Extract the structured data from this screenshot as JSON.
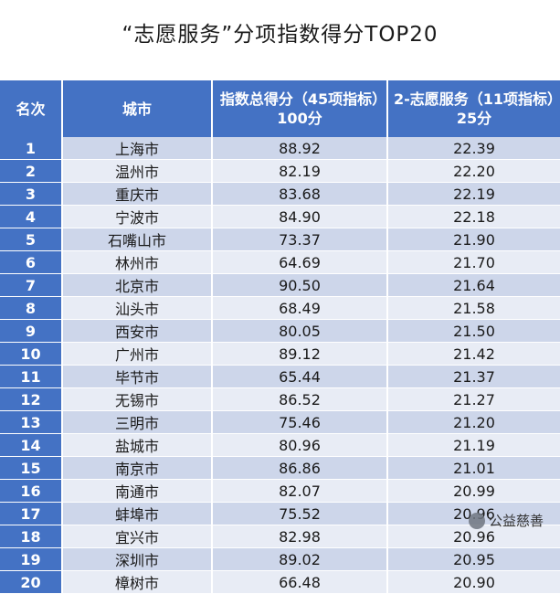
{
  "title": "“志愿服务”分项指数得分TOP20",
  "table": {
    "headers": [
      "名次",
      "城市",
      "指数总得分（45项指标）100分",
      "2-志愿服务（11项指标）25分"
    ],
    "rows": [
      [
        "1",
        "上海市",
        "88.92",
        "22.39"
      ],
      [
        "2",
        "温州市",
        "82.19",
        "22.20"
      ],
      [
        "3",
        "重庆市",
        "83.68",
        "22.19"
      ],
      [
        "4",
        "宁波市",
        "84.90",
        "22.18"
      ],
      [
        "5",
        "石嘴山市",
        "73.37",
        "21.90"
      ],
      [
        "6",
        "林州市",
        "64.69",
        "21.70"
      ],
      [
        "7",
        "北京市",
        "90.50",
        "21.64"
      ],
      [
        "8",
        "汕头市",
        "68.49",
        "21.58"
      ],
      [
        "9",
        "西安市",
        "80.05",
        "21.50"
      ],
      [
        "10",
        "广州市",
        "89.12",
        "21.42"
      ],
      [
        "11",
        "毕节市",
        "65.44",
        "21.37"
      ],
      [
        "12",
        "无锡市",
        "86.52",
        "21.27"
      ],
      [
        "13",
        "三明市",
        "75.46",
        "21.20"
      ],
      [
        "14",
        "盐城市",
        "80.96",
        "21.19"
      ],
      [
        "15",
        "南京市",
        "86.86",
        "21.01"
      ],
      [
        "16",
        "南通市",
        "82.07",
        "20.99"
      ],
      [
        "17",
        "蚌埠市",
        "75.52",
        "20.96"
      ],
      [
        "18",
        "宜兴市",
        "82.98",
        "20.96"
      ],
      [
        "19",
        "深圳市",
        "89.02",
        "20.95"
      ],
      [
        "20",
        "樟树市",
        "66.48",
        "20.90"
      ]
    ]
  },
  "watermark": {
    "text": "公益慈善",
    "icon": "wechat-logo-icon"
  },
  "colors": {
    "header": "#4472c4",
    "row_odd": "#cdd6ea",
    "row_even": "#e8ecf5"
  }
}
